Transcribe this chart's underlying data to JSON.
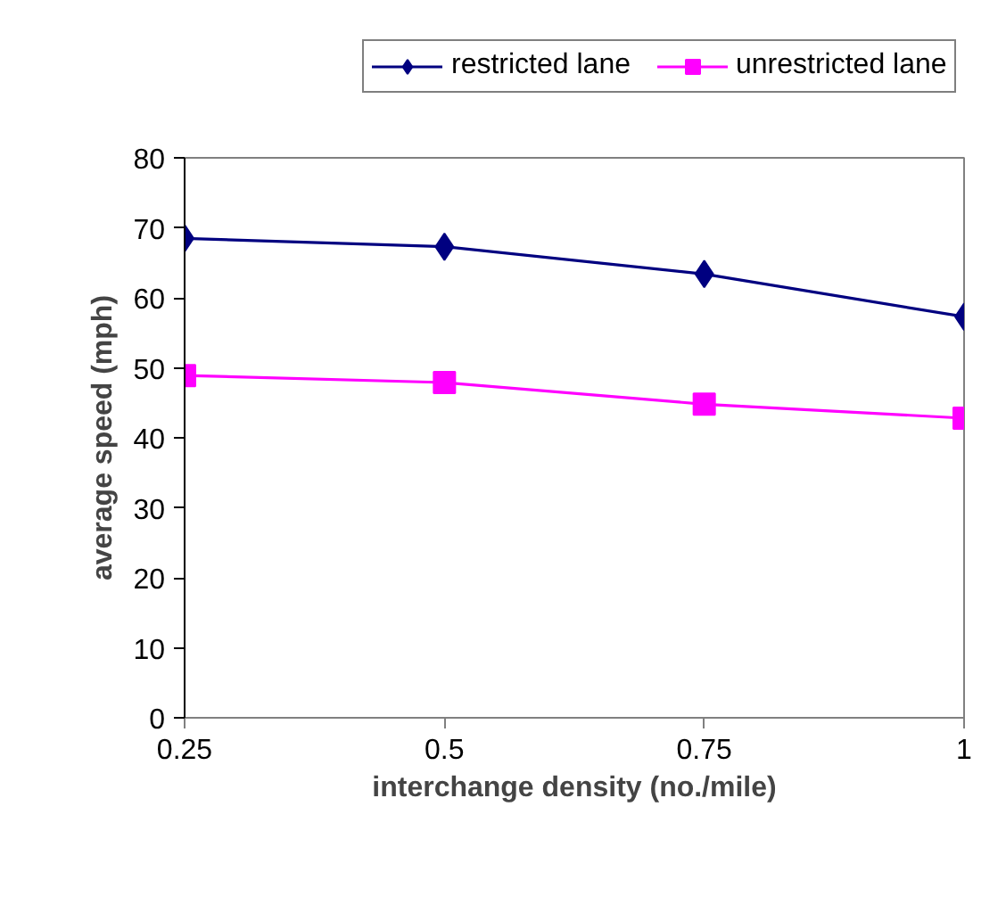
{
  "chart_data": {
    "type": "line",
    "xlabel": "interchange density (no./mile)",
    "ylabel": "average speed (mph)",
    "x": [
      0.25,
      0.5,
      0.75,
      1
    ],
    "xlim": [
      0.25,
      1
    ],
    "xticks": [
      0.25,
      0.5,
      0.75,
      1
    ],
    "ylim": [
      0,
      80
    ],
    "yticks": [
      0,
      10,
      20,
      30,
      40,
      50,
      60,
      70,
      80
    ],
    "grid": false,
    "legend": "top",
    "series": [
      {
        "name": "restricted lane",
        "color": "#000080",
        "marker": "diamond",
        "values": [
          68.5,
          67.3,
          63.4,
          57.3
        ]
      },
      {
        "name": "unrestricted lane",
        "color": "#ff00ff",
        "marker": "square",
        "values": [
          48.9,
          47.9,
          44.8,
          42.8
        ]
      }
    ]
  }
}
